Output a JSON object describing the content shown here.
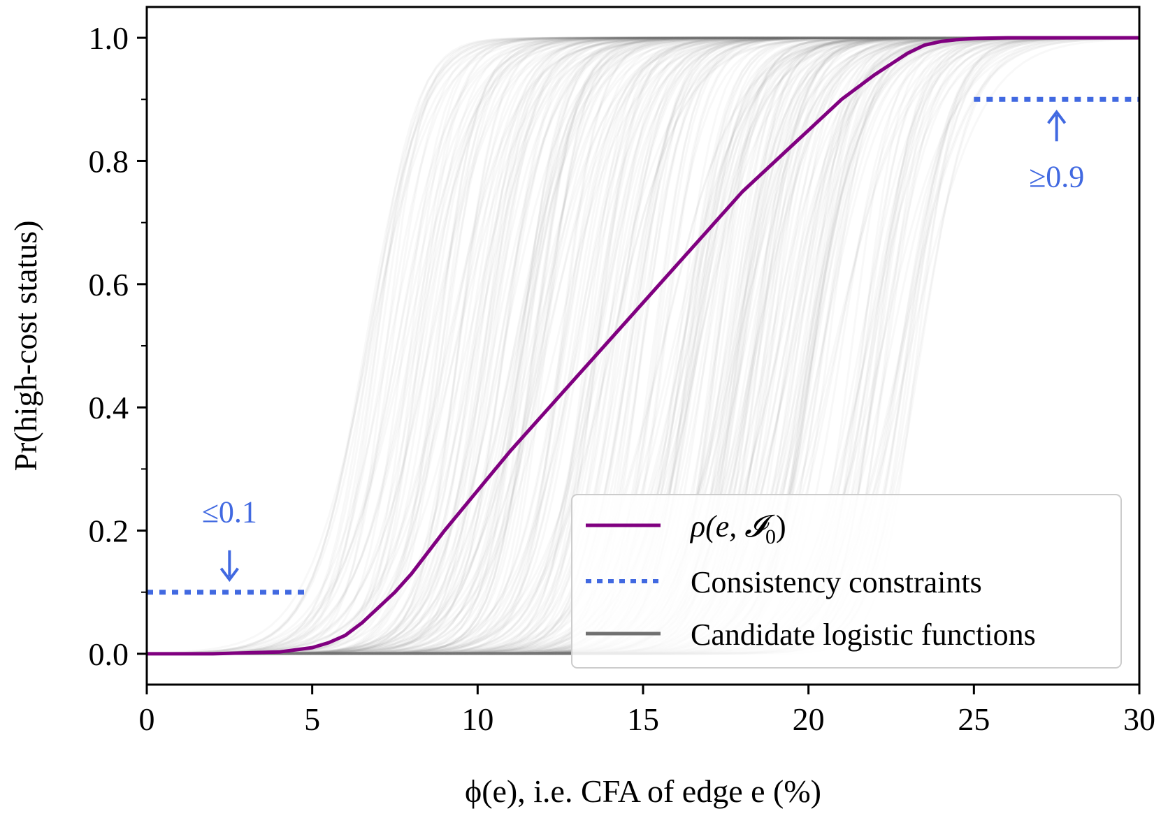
{
  "chart_data": {
    "type": "line",
    "xlabel": "ϕ(e), i.e. CFA of edge e (%)",
    "ylabel": "Pr(high-cost status)",
    "xlim": [
      0,
      30
    ],
    "ylim": [
      -0.05,
      1.05
    ],
    "xticks": [
      "0",
      "5",
      "10",
      "15",
      "20",
      "25",
      "30"
    ],
    "yticks": [
      "0.0",
      "0.2",
      "0.4",
      "0.6",
      "0.8",
      "1.0"
    ],
    "xtick_values": [
      0,
      5,
      10,
      15,
      20,
      25,
      30
    ],
    "ytick_values": [
      0.0,
      0.2,
      0.4,
      0.6,
      0.8,
      1.0
    ],
    "yminor_values": [
      0.1,
      0.3,
      0.5,
      0.7,
      0.9
    ],
    "grid": false,
    "legend_position": "lower-right",
    "series": [
      {
        "name": "ρ(e, I₀)",
        "legend_label": "ρ(e, 𝓘",
        "legend_sub": "0",
        "color": "#800080",
        "x": [
          0,
          2,
          4,
          5,
          5.5,
          6,
          6.5,
          7,
          7.5,
          8,
          9,
          10,
          11,
          12,
          13,
          14,
          15,
          16,
          17,
          18,
          19,
          20,
          21,
          22,
          23,
          23.5,
          24,
          24.5,
          25,
          26,
          27,
          28,
          30
        ],
        "y": [
          0.0,
          0.0,
          0.003,
          0.01,
          0.018,
          0.03,
          0.05,
          0.075,
          0.1,
          0.13,
          0.2,
          0.265,
          0.33,
          0.39,
          0.45,
          0.51,
          0.57,
          0.63,
          0.69,
          0.75,
          0.8,
          0.85,
          0.9,
          0.94,
          0.975,
          0.988,
          0.994,
          0.997,
          0.999,
          1.0,
          1.0,
          1.0,
          1.0
        ]
      },
      {
        "name": "Consistency constraints",
        "color": "#4169e1",
        "segments": [
          {
            "x": [
              0,
              4.8
            ],
            "y": 0.1,
            "label": "≤0.1",
            "arrow": "down",
            "arrow_x": 2.5
          },
          {
            "x": [
              25,
              30
            ],
            "y": 0.9,
            "label": "≥0.9",
            "arrow": "up",
            "arrow_x": 27.5
          }
        ]
      },
      {
        "name": "Candidate logistic functions",
        "color": "#707070",
        "count": 300,
        "midpoint_range": [
          6.5,
          23.5
        ],
        "steepness_range": [
          0.9,
          1.8
        ]
      }
    ]
  }
}
